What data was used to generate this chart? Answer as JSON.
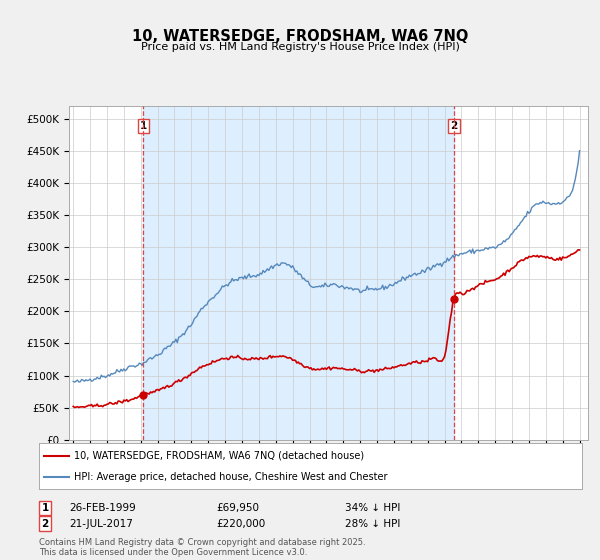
{
  "title1": "10, WATERSEDGE, FRODSHAM, WA6 7NQ",
  "title2": "Price paid vs. HM Land Registry's House Price Index (HPI)",
  "ylim": [
    0,
    520000
  ],
  "yticks": [
    0,
    50000,
    100000,
    150000,
    200000,
    250000,
    300000,
    350000,
    400000,
    450000,
    500000
  ],
  "ytick_labels": [
    "£0",
    "£50K",
    "£100K",
    "£150K",
    "£200K",
    "£250K",
    "£300K",
    "£350K",
    "£400K",
    "£450K",
    "£500K"
  ],
  "legend_line1": "10, WATERSEDGE, FRODSHAM, WA6 7NQ (detached house)",
  "legend_line2": "HPI: Average price, detached house, Cheshire West and Chester",
  "footer": "Contains HM Land Registry data © Crown copyright and database right 2025.\nThis data is licensed under the Open Government Licence v3.0.",
  "sale1_date": "26-FEB-1999",
  "sale1_price": 69950,
  "sale1_hpi": "34% ↓ HPI",
  "sale2_date": "21-JUL-2017",
  "sale2_price": 220000,
  "sale2_hpi": "28% ↓ HPI",
  "sale1_x": 1999.15,
  "sale2_x": 2017.55,
  "bg_color": "#f0f0f0",
  "plot_bg_color": "#ffffff",
  "plot_shade_color": "#ddeeff",
  "hpi_color": "#5588bb",
  "price_color": "#cc0000",
  "vline_color": "#dd4444",
  "grid_color": "#cccccc",
  "xlim": [
    1994.75,
    2025.5
  ],
  "xticks": [
    1995,
    1996,
    1997,
    1998,
    1999,
    2000,
    2001,
    2002,
    2003,
    2004,
    2005,
    2006,
    2007,
    2008,
    2009,
    2010,
    2011,
    2012,
    2013,
    2014,
    2015,
    2016,
    2017,
    2018,
    2019,
    2020,
    2021,
    2022,
    2023,
    2024,
    2025
  ]
}
